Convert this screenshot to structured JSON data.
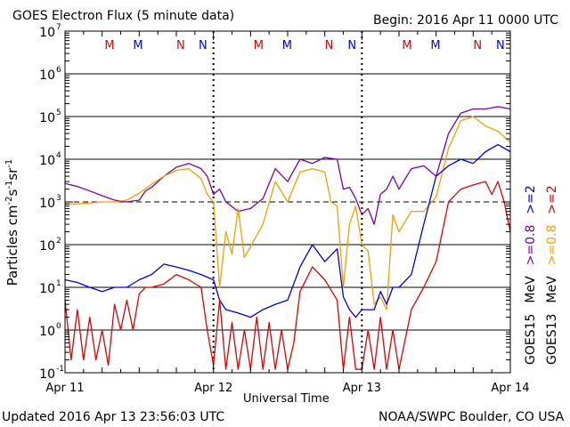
{
  "chart_data": {
    "type": "line",
    "title": "GOES Electron Flux (5 minute data)",
    "begin": "Begin: 2016 Apr 11 0000 UTC",
    "xlabel": "Universal Time",
    "ylabel": {
      "prefix": "Particles cm",
      "exp1": "-2",
      "mid1": "s",
      "exp2": "-1",
      "mid2": "sr",
      "exp3": "-1"
    },
    "updated": "Updated 2016 Apr 13 23:56:03 UTC",
    "credit": "NOAA/SWPC Boulder, CO USA",
    "xrange_hours": [
      0,
      72
    ],
    "ylim_log10": [
      -1,
      7
    ],
    "y_scale": "log",
    "x_ticks": [
      {
        "label": "Apr 11",
        "hour": 0
      },
      {
        "label": "Apr 12",
        "hour": 24
      },
      {
        "label": "Apr 13",
        "hour": 48
      },
      {
        "label": "Apr 14",
        "hour": 72
      }
    ],
    "y_ticks": [
      {
        "base": "10",
        "exp": "-1",
        "log": -1
      },
      {
        "base": "10",
        "exp": "0",
        "log": 0
      },
      {
        "base": "10",
        "exp": "1",
        "log": 1
      },
      {
        "base": "10",
        "exp": "2",
        "log": 2
      },
      {
        "base": "10",
        "exp": "3",
        "log": 3
      },
      {
        "base": "10",
        "exp": "4",
        "log": 4
      },
      {
        "base": "10",
        "exp": "5",
        "log": 5
      },
      {
        "base": "10",
        "exp": "6",
        "log": 6
      },
      {
        "base": "10",
        "exp": "7",
        "log": 7
      }
    ],
    "threshold_log10": 3,
    "markers": [
      {
        "label": "M",
        "hour": 7.2,
        "color": "#e00000"
      },
      {
        "label": "M",
        "hour": 11.8,
        "color": "#0000e0"
      },
      {
        "label": "N",
        "hour": 18.7,
        "color": "#e00000"
      },
      {
        "label": "N",
        "hour": 22.3,
        "color": "#0000e0"
      },
      {
        "label": "M",
        "hour": 31.3,
        "color": "#e00000"
      },
      {
        "label": "M",
        "hour": 35.9,
        "color": "#0000e0"
      },
      {
        "label": "N",
        "hour": 42.7,
        "color": "#e00000"
      },
      {
        "label": "N",
        "hour": 46.4,
        "color": "#0000e0"
      },
      {
        "label": "M",
        "hour": 55.3,
        "color": "#e00000"
      },
      {
        "label": "M",
        "hour": 59.9,
        "color": "#0000e0"
      },
      {
        "label": "N",
        "hour": 66.7,
        "color": "#e00000"
      },
      {
        "label": "N",
        "hour": 70.4,
        "color": "#0000e0"
      }
    ],
    "legend": {
      "left_column": [
        {
          "text": ">=2",
          "color": "#0000e0"
        },
        {
          "text": ">=0.8",
          "color": "#7a00a8"
        },
        {
          "text": "MeV",
          "color": "#000000"
        },
        {
          "text": "GOES15",
          "color": "#000000"
        }
      ],
      "right_column": [
        {
          "text": ">=2",
          "color": "#e00000"
        },
        {
          "text": ">=0.8",
          "color": "#f0a000"
        },
        {
          "text": "MeV",
          "color": "#000000"
        },
        {
          "text": "GOES13",
          "color": "#000000"
        }
      ]
    },
    "series": [
      {
        "name": "GOES15 >=0.8 MeV",
        "color": "#7a00a8",
        "x": [
          0,
          2,
          4,
          6,
          8,
          10,
          12,
          13,
          14,
          16,
          18,
          20,
          22,
          23,
          24,
          25,
          26,
          28,
          30,
          32,
          34,
          36,
          38,
          40,
          42,
          44,
          45,
          46,
          47,
          48,
          49,
          50,
          51,
          52,
          53,
          54,
          56,
          58,
          60,
          62,
          64,
          66,
          68,
          70,
          72
        ],
        "y": [
          2700.0,
          2300.0,
          1800.0,
          1400.0,
          1100.0,
          1000.0,
          1100.0,
          1800.0,
          2200.0,
          4000.0,
          6500.0,
          8000.0,
          6000.0,
          4000.0,
          1500.0,
          2000.0,
          1000.0,
          600.0,
          700.0,
          1200.0,
          6000.0,
          3000.0,
          10000.0,
          8000.0,
          11000.0,
          10000.0,
          2000.0,
          2200.0,
          1200.0,
          500.0,
          700.0,
          300.0,
          1500.0,
          2000.0,
          4000.0,
          2000.0,
          6000.0,
          7000.0,
          4000.0,
          40000.0,
          120000.0,
          150000.0,
          150000.0,
          170000.0,
          150000.0
        ]
      },
      {
        "name": "GOES13 >=0.8 MeV",
        "color": "#f0a000",
        "x": [
          0,
          2,
          4,
          6,
          8,
          10,
          12,
          14,
          16,
          18,
          20,
          22,
          23,
          24,
          25,
          26,
          27,
          28,
          29,
          30,
          32,
          34,
          36,
          38,
          40,
          42,
          43,
          44,
          45,
          46,
          47,
          48,
          49,
          50,
          51,
          52,
          53,
          54,
          56,
          58,
          60,
          62,
          64,
          66,
          68,
          70,
          72
        ],
        "y": [
          900.0,
          900.0,
          950.0,
          1000.0,
          1000.0,
          1100.0,
          1600.0,
          2600.0,
          4000.0,
          5500.0,
          6000.0,
          3500.0,
          1500.0,
          1000.0,
          10.0,
          200.0,
          60.0,
          700.0,
          50.0,
          90.0,
          300.0,
          3000.0,
          1000.0,
          5000.0,
          6000.0,
          5000.0,
          1000.0,
          800.0,
          10.0,
          300.0,
          800.0,
          100.0,
          70.0,
          4.0,
          6.0,
          3.0,
          500.0,
          200.0,
          600.0,
          600.0,
          1300.0,
          18000.0,
          80000.0,
          100000.0,
          60000.0,
          45000.0,
          25000.0
        ]
      },
      {
        "name": "GOES15 >=2 MeV",
        "color": "#0000e0",
        "x": [
          0,
          2,
          4,
          6,
          8,
          10,
          12,
          14,
          16,
          18,
          20,
          22,
          24,
          25,
          26,
          28,
          30,
          32,
          34,
          36,
          38,
          40,
          42,
          44,
          45,
          46,
          47,
          48,
          50,
          51,
          52,
          53,
          54,
          56,
          58,
          60,
          62,
          64,
          66,
          68,
          70,
          72
        ],
        "y": [
          15.0,
          13.0,
          10.0,
          8.0,
          10.0,
          10.0,
          15.0,
          20.0,
          35.0,
          30.0,
          25.0,
          20.0,
          15.0,
          5.0,
          3.0,
          2.5,
          2.0,
          3.0,
          4.0,
          5.0,
          30.0,
          100.0,
          40.0,
          80.0,
          6.0,
          3.0,
          2.0,
          3.0,
          3.0,
          8.0,
          4.0,
          10.0,
          10.0,
          20.0,
          300.0,
          4000.0,
          7000.0,
          10000.0,
          8000.0,
          15000.0,
          22000.0,
          15000.0
        ]
      },
      {
        "name": "GOES13 >=2 MeV",
        "color": "#e00000",
        "x": [
          0,
          1,
          2,
          3,
          4,
          5,
          6,
          7,
          8,
          9,
          10,
          11,
          12,
          13,
          14,
          16,
          18,
          20,
          22,
          23,
          24,
          25,
          26,
          27,
          28,
          29,
          30,
          31,
          32,
          33,
          34,
          35,
          36,
          37,
          38,
          40,
          42,
          44,
          45,
          46,
          47,
          48,
          49,
          50,
          51,
          52,
          53,
          54,
          56,
          58,
          60,
          62,
          64,
          66,
          68,
          69,
          70,
          71,
          72
        ],
        "y": [
          5.0,
          0.2,
          3.0,
          0.2,
          2.0,
          0.2,
          1.0,
          0.15,
          4.0,
          1.0,
          5.0,
          1.0,
          7.0,
          10.0,
          10.0,
          12.0,
          20.0,
          15.0,
          10.0,
          1.0,
          0.15,
          5.0,
          0.12,
          1.5,
          0.12,
          1.0,
          0.12,
          2.0,
          0.12,
          1.5,
          0.12,
          1.0,
          0.12,
          0.5,
          8.0,
          30.0,
          15.0,
          5.0,
          0.12,
          2.0,
          0.12,
          0.12,
          1.0,
          0.12,
          2.0,
          0.12,
          1.0,
          0.12,
          3.0,
          10.0,
          40.0,
          1000.0,
          2000.0,
          2500.0,
          3000.0,
          1500.0,
          3000.0,
          1000.0,
          200.0
        ]
      }
    ]
  }
}
